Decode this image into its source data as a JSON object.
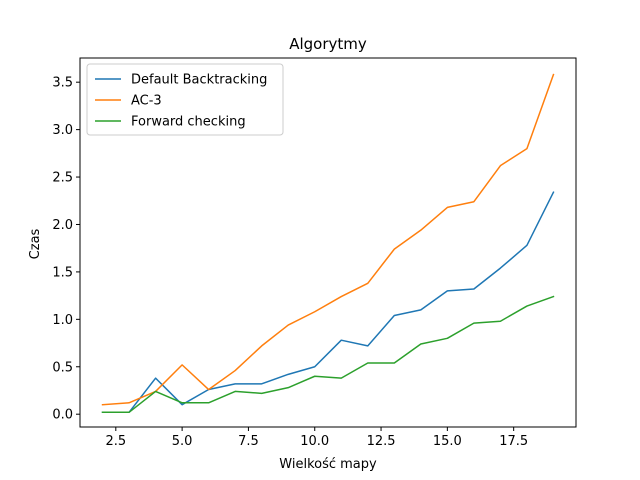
{
  "chart_data": {
    "type": "line",
    "title": "Algorytmy",
    "xlabel": "Wielkość mapy",
    "ylabel": "Czas",
    "xlim": [
      1.15,
      19.85
    ],
    "ylim": [
      -0.135,
      3.755
    ],
    "xticks": [
      2.5,
      5.0,
      7.5,
      10.0,
      12.5,
      15.0,
      17.5
    ],
    "xtick_labels": [
      "2.5",
      "5.0",
      "7.5",
      "10.0",
      "12.5",
      "15.0",
      "17.5"
    ],
    "yticks": [
      0.0,
      0.5,
      1.0,
      1.5,
      2.0,
      2.5,
      3.0,
      3.5
    ],
    "ytick_labels": [
      "0.0",
      "0.5",
      "1.0",
      "1.5",
      "2.0",
      "2.5",
      "3.0",
      "3.5"
    ],
    "grid": false,
    "legend_position": "top-left",
    "x": [
      2,
      3,
      4,
      5,
      6,
      7,
      8,
      9,
      10,
      11,
      12,
      13,
      14,
      15,
      16,
      17,
      18,
      19
    ],
    "series": [
      {
        "name": "Default Backtracking",
        "color": "#1f77b4",
        "values": [
          0.02,
          0.02,
          0.38,
          0.1,
          0.26,
          0.32,
          0.32,
          0.42,
          0.5,
          0.78,
          0.72,
          1.04,
          1.1,
          1.3,
          1.32,
          1.54,
          1.78,
          2.34
        ]
      },
      {
        "name": "AC-3",
        "color": "#ff7f0e",
        "values": [
          0.1,
          0.12,
          0.24,
          0.52,
          0.26,
          0.46,
          0.72,
          0.94,
          1.08,
          1.24,
          1.38,
          1.74,
          1.94,
          2.18,
          2.24,
          2.62,
          2.8,
          3.58
        ]
      },
      {
        "name": "Forward checking",
        "color": "#2ca02c",
        "values": [
          0.02,
          0.02,
          0.24,
          0.12,
          0.12,
          0.24,
          0.22,
          0.28,
          0.4,
          0.38,
          0.54,
          0.54,
          0.74,
          0.8,
          0.96,
          0.98,
          1.14,
          1.24
        ]
      }
    ]
  }
}
